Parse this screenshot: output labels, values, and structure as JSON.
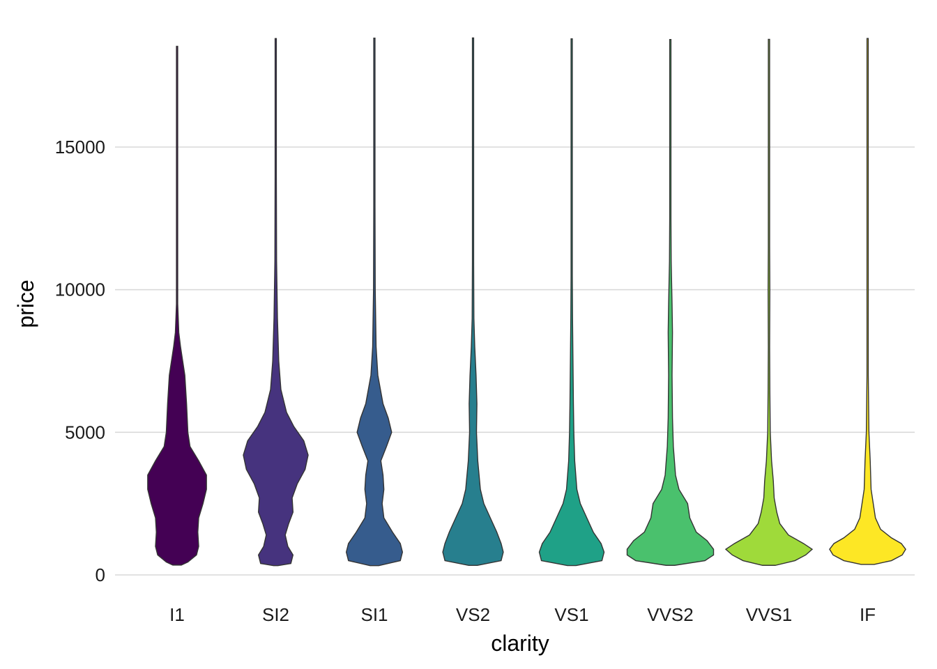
{
  "chart_data": {
    "type": "violin",
    "title": "",
    "xlabel": "clarity",
    "ylabel": "price",
    "categories": [
      "I1",
      "SI2",
      "SI1",
      "VS2",
      "VS1",
      "VVS2",
      "VVS1",
      "IF"
    ],
    "ylim": [
      -1000,
      19200
    ],
    "yticks": [
      0,
      5000,
      10000,
      15000
    ],
    "ytick_labels": [
      "0",
      "5000",
      "10000",
      "15000"
    ],
    "grid": "horizontal major",
    "legend": "none",
    "price_range": [
      [
        345,
        18531
      ],
      [
        326,
        18804
      ],
      [
        326,
        18818
      ],
      [
        334,
        18823
      ],
      [
        327,
        18795
      ],
      [
        336,
        18768
      ],
      [
        336,
        18777
      ],
      [
        369,
        18806
      ]
    ],
    "fill_colors": [
      "#440154",
      "#46337E",
      "#365C8D",
      "#277F8E",
      "#1FA187",
      "#4AC16D",
      "#9FDA3A",
      "#FDE725"
    ],
    "density_profiles": [
      [
        [
          345,
          0.1
        ],
        [
          450,
          0.25
        ],
        [
          700,
          0.45
        ],
        [
          1000,
          0.5
        ],
        [
          1500,
          0.48
        ],
        [
          2000,
          0.5
        ],
        [
          2500,
          0.6
        ],
        [
          3000,
          0.68
        ],
        [
          3500,
          0.68
        ],
        [
          4000,
          0.5
        ],
        [
          4500,
          0.3
        ],
        [
          5000,
          0.25
        ],
        [
          6000,
          0.22
        ],
        [
          7000,
          0.18
        ],
        [
          8000,
          0.08
        ],
        [
          8500,
          0.04
        ],
        [
          9500,
          0.015
        ],
        [
          11000,
          0.01
        ],
        [
          13000,
          0.005
        ],
        [
          18531,
          0.004
        ]
      ],
      [
        [
          326,
          0.05
        ],
        [
          400,
          0.35
        ],
        [
          700,
          0.4
        ],
        [
          1000,
          0.28
        ],
        [
          1400,
          0.22
        ],
        [
          1800,
          0.3
        ],
        [
          2200,
          0.4
        ],
        [
          2700,
          0.38
        ],
        [
          3200,
          0.5
        ],
        [
          3700,
          0.68
        ],
        [
          4200,
          0.75
        ],
        [
          4700,
          0.65
        ],
        [
          5200,
          0.42
        ],
        [
          5700,
          0.25
        ],
        [
          6500,
          0.12
        ],
        [
          7500,
          0.07
        ],
        [
          9000,
          0.04
        ],
        [
          11000,
          0.02
        ],
        [
          14000,
          0.01
        ],
        [
          18804,
          0.004
        ]
      ],
      [
        [
          326,
          0.1
        ],
        [
          500,
          0.6
        ],
        [
          800,
          0.65
        ],
        [
          1100,
          0.6
        ],
        [
          1500,
          0.42
        ],
        [
          2000,
          0.22
        ],
        [
          2500,
          0.18
        ],
        [
          3000,
          0.22
        ],
        [
          3500,
          0.2
        ],
        [
          4000,
          0.15
        ],
        [
          4500,
          0.28
        ],
        [
          5000,
          0.4
        ],
        [
          5500,
          0.32
        ],
        [
          6000,
          0.2
        ],
        [
          7000,
          0.08
        ],
        [
          8000,
          0.04
        ],
        [
          10000,
          0.02
        ],
        [
          13000,
          0.01
        ],
        [
          18818,
          0.004
        ]
      ],
      [
        [
          334,
          0.1
        ],
        [
          500,
          0.65
        ],
        [
          800,
          0.7
        ],
        [
          1100,
          0.65
        ],
        [
          1500,
          0.55
        ],
        [
          2000,
          0.4
        ],
        [
          2500,
          0.25
        ],
        [
          3000,
          0.17
        ],
        [
          4000,
          0.11
        ],
        [
          5000,
          0.08
        ],
        [
          6000,
          0.09
        ],
        [
          7000,
          0.07
        ],
        [
          8000,
          0.04
        ],
        [
          9000,
          0.02
        ],
        [
          11000,
          0.01
        ],
        [
          14000,
          0.006
        ],
        [
          18823,
          0.004
        ]
      ],
      [
        [
          327,
          0.1
        ],
        [
          500,
          0.7
        ],
        [
          800,
          0.75
        ],
        [
          1100,
          0.68
        ],
        [
          1500,
          0.5
        ],
        [
          2000,
          0.35
        ],
        [
          2500,
          0.2
        ],
        [
          3000,
          0.12
        ],
        [
          4000,
          0.07
        ],
        [
          5000,
          0.05
        ],
        [
          6000,
          0.04
        ],
        [
          7500,
          0.03
        ],
        [
          9000,
          0.02
        ],
        [
          10500,
          0.01
        ],
        [
          12000,
          0.005
        ],
        [
          18795,
          0.004
        ]
      ],
      [
        [
          336,
          0.1
        ],
        [
          500,
          0.8
        ],
        [
          700,
          1.0
        ],
        [
          900,
          1.0
        ],
        [
          1200,
          0.85
        ],
        [
          1500,
          0.6
        ],
        [
          2000,
          0.45
        ],
        [
          2500,
          0.4
        ],
        [
          3000,
          0.2
        ],
        [
          3500,
          0.12
        ],
        [
          4500,
          0.07
        ],
        [
          5500,
          0.05
        ],
        [
          7000,
          0.04
        ],
        [
          8500,
          0.05
        ],
        [
          9500,
          0.04
        ],
        [
          11000,
          0.02
        ],
        [
          12500,
          0.01
        ],
        [
          18768,
          0.004
        ]
      ],
      [
        [
          336,
          0.15
        ],
        [
          500,
          0.6
        ],
        [
          700,
          0.85
        ],
        [
          900,
          1.0
        ],
        [
          1100,
          0.8
        ],
        [
          1400,
          0.45
        ],
        [
          1800,
          0.25
        ],
        [
          2200,
          0.18
        ],
        [
          2700,
          0.12
        ],
        [
          3300,
          0.1
        ],
        [
          4000,
          0.06
        ],
        [
          5000,
          0.03
        ],
        [
          6500,
          0.02
        ],
        [
          8000,
          0.015
        ],
        [
          10000,
          0.02
        ],
        [
          11500,
          0.015
        ],
        [
          18777,
          0.004
        ]
      ],
      [
        [
          369,
          0.15
        ],
        [
          500,
          0.55
        ],
        [
          700,
          0.8
        ],
        [
          900,
          0.88
        ],
        [
          1100,
          0.78
        ],
        [
          1300,
          0.55
        ],
        [
          1600,
          0.3
        ],
        [
          2000,
          0.18
        ],
        [
          2500,
          0.13
        ],
        [
          3000,
          0.08
        ],
        [
          4000,
          0.06
        ],
        [
          5000,
          0.03
        ],
        [
          7000,
          0.015
        ],
        [
          9000,
          0.01
        ],
        [
          10000,
          0.015
        ],
        [
          11500,
          0.01
        ],
        [
          18806,
          0.004
        ]
      ]
    ]
  }
}
